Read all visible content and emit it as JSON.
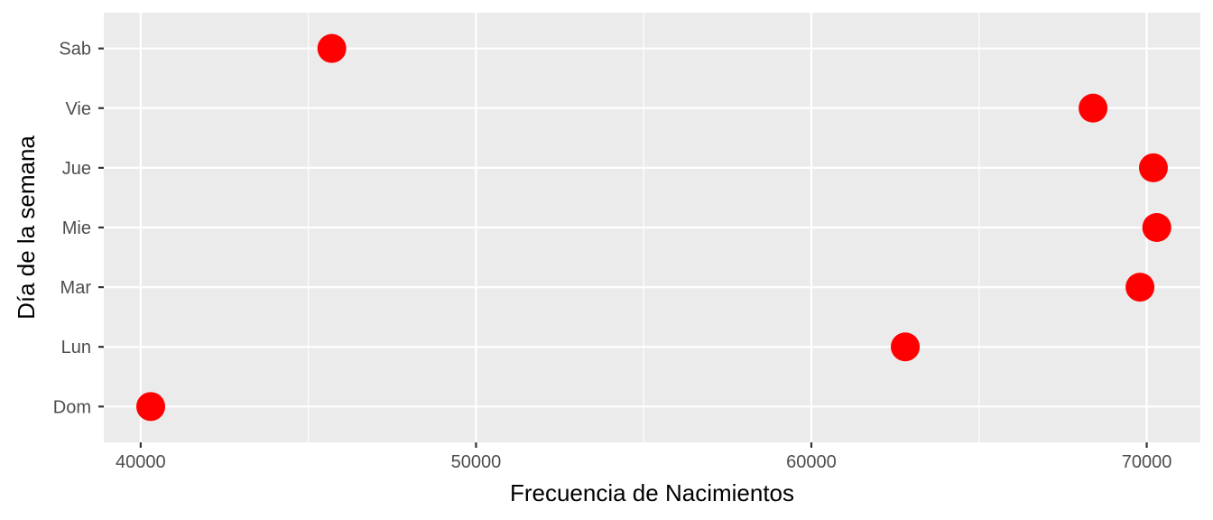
{
  "chart_data": {
    "type": "scatter",
    "title": "",
    "xlabel": "Frecuencia de Nacimientos",
    "ylabel": "Día de la semana",
    "categories": [
      "Dom",
      "Lun",
      "Mar",
      "Mie",
      "Jue",
      "Vie",
      "Sab"
    ],
    "x_tick_labels": [
      "40000",
      "50000",
      "60000",
      "70000"
    ],
    "x_ticks": [
      40000,
      50000,
      60000,
      70000
    ],
    "x_minor_ticks": [
      45000,
      55000,
      65000
    ],
    "xlim": [
      38900,
      71600
    ],
    "series": [
      {
        "color": "#FF0000",
        "points": [
          {
            "y": "Dom",
            "x": 40300
          },
          {
            "y": "Lun",
            "x": 62800
          },
          {
            "y": "Mar",
            "x": 69800
          },
          {
            "y": "Mie",
            "x": 70300
          },
          {
            "y": "Jue",
            "x": 70200
          },
          {
            "y": "Vie",
            "x": 68400
          },
          {
            "y": "Sab",
            "x": 45700
          }
        ]
      }
    ],
    "grid": true,
    "legend": "none",
    "panel_background": "#EBEBEB",
    "grid_color": "#FFFFFF"
  }
}
